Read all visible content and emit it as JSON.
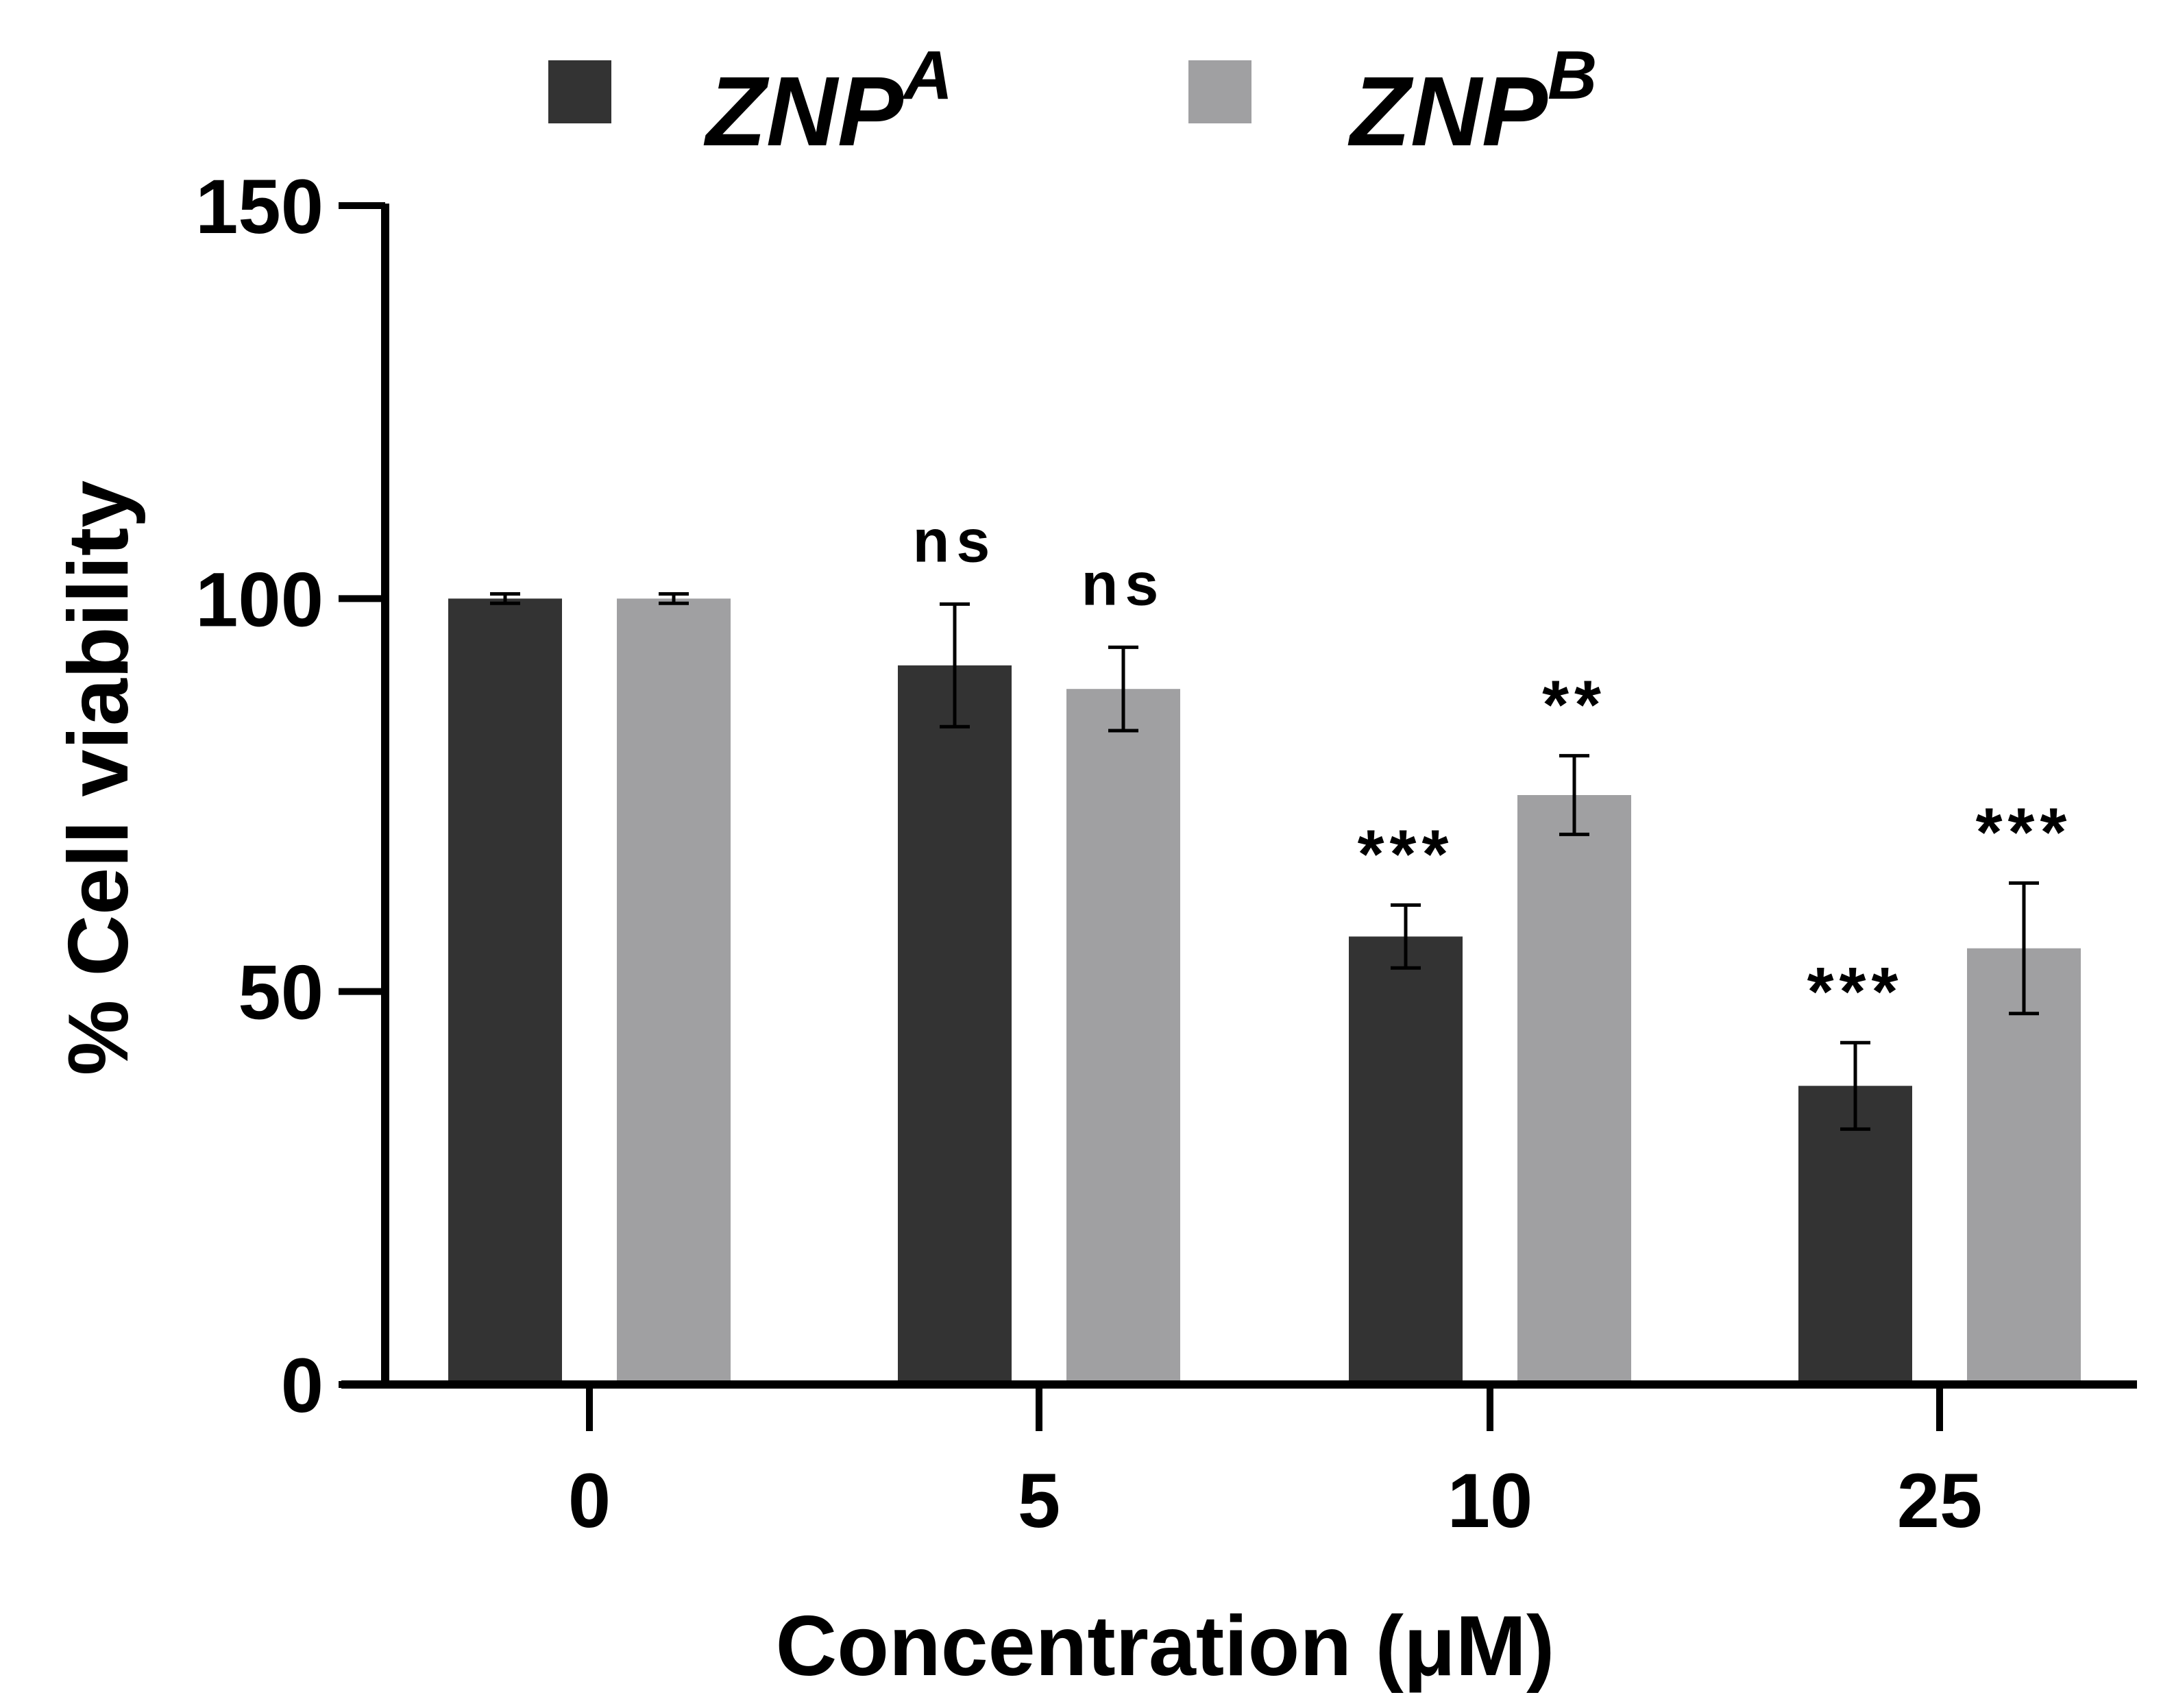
{
  "chart_data": {
    "type": "bar",
    "title": "",
    "xlabel": "Concentration (μM)",
    "ylabel": "% Cell viability",
    "ylim": [
      0,
      150
    ],
    "yticks": [
      0,
      50,
      100,
      150
    ],
    "categories": [
      "0",
      "5",
      "10",
      "25"
    ],
    "grid": false,
    "legend_position": "top",
    "series": [
      {
        "name": "ZNP",
        "superscript": "A",
        "color": "#333333",
        "values": [
          100,
          91.5,
          57,
          38
        ],
        "errors": [
          0.6,
          7.8,
          4,
          5.5
        ],
        "annotations": [
          "",
          "ns",
          "***",
          "***"
        ]
      },
      {
        "name": "ZNP",
        "superscript": "B",
        "color": "#a0a0a2",
        "values": [
          100,
          88.5,
          75,
          55.5
        ],
        "errors": [
          0.6,
          5.3,
          5,
          8.3
        ],
        "annotations": [
          "",
          "ns",
          "**",
          "***"
        ]
      }
    ]
  }
}
